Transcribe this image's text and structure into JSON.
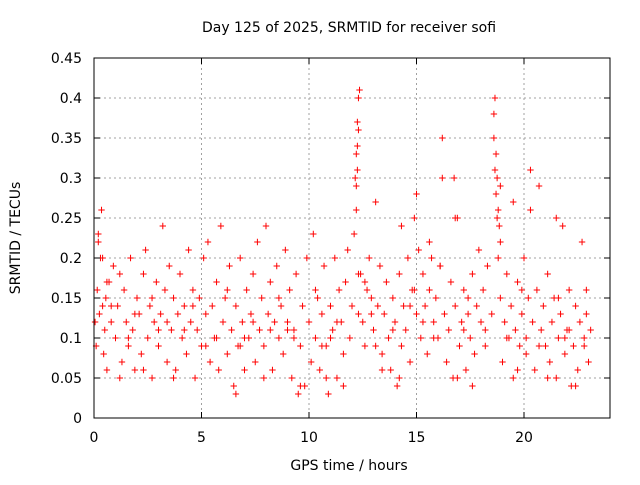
{
  "chart_data": {
    "type": "scatter",
    "title": "Day 125 of 2025, SRMTID for receiver sofi",
    "xlabel": "GPS time / hours",
    "ylabel": "SRMTID / TECUs",
    "xlim": [
      0,
      24
    ],
    "ylim": [
      0,
      0.45
    ],
    "x_ticks": [
      0,
      5,
      10,
      15,
      20
    ],
    "x_tick_labels": [
      "0",
      "5",
      "10",
      "15",
      "20"
    ],
    "y_ticks": [
      0,
      0.05,
      0.1,
      0.15,
      0.2,
      0.25,
      0.3,
      0.35,
      0.4,
      0.45
    ],
    "y_tick_labels": [
      "0",
      "0.05",
      "0.1",
      "0.15",
      "0.2",
      "0.25",
      "0.3",
      "0.35",
      "0.4",
      "0.45"
    ],
    "grid": true,
    "marker": "plus",
    "color": "#ff0000",
    "points": [
      [
        0.05,
        0.12
      ],
      [
        0.1,
        0.09
      ],
      [
        0.15,
        0.16
      ],
      [
        0.2,
        0.22
      ],
      [
        0.25,
        0.13
      ],
      [
        0.3,
        0.2
      ],
      [
        0.35,
        0.26
      ],
      [
        0.4,
        0.14
      ],
      [
        0.45,
        0.08
      ],
      [
        0.5,
        0.11
      ],
      [
        0.55,
        0.15
      ],
      [
        0.6,
        0.06
      ],
      [
        0.7,
        0.17
      ],
      [
        0.8,
        0.12
      ],
      [
        0.9,
        0.19
      ],
      [
        1.0,
        0.1
      ],
      [
        1.1,
        0.14
      ],
      [
        1.2,
        0.18
      ],
      [
        1.3,
        0.07
      ],
      [
        1.4,
        0.16
      ],
      [
        1.5,
        0.12
      ],
      [
        1.6,
        0.09
      ],
      [
        1.7,
        0.2
      ],
      [
        1.8,
        0.11
      ],
      [
        1.9,
        0.06
      ],
      [
        2.0,
        0.15
      ],
      [
        2.1,
        0.13
      ],
      [
        2.2,
        0.08
      ],
      [
        2.3,
        0.18
      ],
      [
        2.4,
        0.21
      ],
      [
        2.5,
        0.1
      ],
      [
        2.6,
        0.14
      ],
      [
        2.7,
        0.05
      ],
      [
        2.8,
        0.12
      ],
      [
        2.9,
        0.17
      ],
      [
        3.0,
        0.09
      ],
      [
        3.1,
        0.13
      ],
      [
        3.2,
        0.24
      ],
      [
        3.3,
        0.16
      ],
      [
        3.4,
        0.07
      ],
      [
        3.5,
        0.19
      ],
      [
        3.6,
        0.11
      ],
      [
        3.7,
        0.15
      ],
      [
        3.8,
        0.06
      ],
      [
        3.9,
        0.13
      ],
      [
        4.0,
        0.18
      ],
      [
        4.1,
        0.1
      ],
      [
        4.2,
        0.14
      ],
      [
        4.3,
        0.08
      ],
      [
        4.4,
        0.21
      ],
      [
        4.5,
        0.12
      ],
      [
        4.6,
        0.16
      ],
      [
        4.7,
        0.05
      ],
      [
        4.8,
        0.11
      ],
      [
        4.9,
        0.15
      ],
      [
        5.0,
        0.09
      ],
      [
        5.1,
        0.2
      ],
      [
        5.2,
        0.13
      ],
      [
        5.3,
        0.22
      ],
      [
        5.4,
        0.07
      ],
      [
        5.5,
        0.14
      ],
      [
        5.6,
        0.1
      ],
      [
        5.7,
        0.17
      ],
      [
        5.8,
        0.06
      ],
      [
        5.9,
        0.24
      ],
      [
        6.0,
        0.12
      ],
      [
        6.1,
        0.15
      ],
      [
        6.2,
        0.08
      ],
      [
        6.3,
        0.19
      ],
      [
        6.4,
        0.11
      ],
      [
        6.5,
        0.04
      ],
      [
        6.6,
        0.14
      ],
      [
        6.7,
        0.09
      ],
      [
        6.8,
        0.2
      ],
      [
        6.9,
        0.12
      ],
      [
        7.0,
        0.06
      ],
      [
        7.1,
        0.16
      ],
      [
        7.2,
        0.1
      ],
      [
        7.3,
        0.13
      ],
      [
        7.4,
        0.18
      ],
      [
        7.5,
        0.07
      ],
      [
        7.6,
        0.22
      ],
      [
        7.7,
        0.11
      ],
      [
        7.8,
        0.15
      ],
      [
        7.9,
        0.09
      ],
      [
        8.0,
        0.24
      ],
      [
        8.1,
        0.13
      ],
      [
        8.2,
        0.17
      ],
      [
        8.3,
        0.06
      ],
      [
        8.4,
        0.12
      ],
      [
        8.5,
        0.19
      ],
      [
        8.6,
        0.1
      ],
      [
        8.7,
        0.14
      ],
      [
        8.8,
        0.08
      ],
      [
        8.9,
        0.21
      ],
      [
        9.0,
        0.12
      ],
      [
        9.1,
        0.16
      ],
      [
        9.2,
        0.05
      ],
      [
        9.3,
        0.11
      ],
      [
        9.4,
        0.18
      ],
      [
        9.5,
        0.03
      ],
      [
        9.6,
        0.09
      ],
      [
        9.7,
        0.14
      ],
      [
        9.8,
        0.04
      ],
      [
        9.9,
        0.2
      ],
      [
        10.0,
        0.12
      ],
      [
        10.1,
        0.07
      ],
      [
        10.2,
        0.23
      ],
      [
        10.3,
        0.1
      ],
      [
        10.4,
        0.15
      ],
      [
        10.5,
        0.06
      ],
      [
        10.6,
        0.13
      ],
      [
        10.7,
        0.19
      ],
      [
        10.8,
        0.09
      ],
      [
        10.9,
        0.03
      ],
      [
        11.0,
        0.14
      ],
      [
        11.1,
        0.11
      ],
      [
        11.2,
        0.2
      ],
      [
        11.3,
        0.05
      ],
      [
        11.4,
        0.16
      ],
      [
        11.5,
        0.12
      ],
      [
        11.6,
        0.08
      ],
      [
        11.7,
        0.17
      ],
      [
        11.8,
        0.21
      ],
      [
        11.9,
        0.1
      ],
      [
        12.0,
        0.14
      ],
      [
        12.1,
        0.23
      ],
      [
        12.2,
        0.26
      ],
      [
        12.3,
        0.13
      ],
      [
        12.4,
        0.18
      ],
      [
        12.5,
        0.12
      ],
      [
        12.6,
        0.09
      ],
      [
        12.7,
        0.16
      ],
      [
        12.8,
        0.2
      ],
      [
        12.9,
        0.15
      ],
      [
        13.0,
        0.11
      ],
      [
        13.1,
        0.27
      ],
      [
        13.2,
        0.14
      ],
      [
        13.3,
        0.19
      ],
      [
        13.4,
        0.08
      ],
      [
        13.5,
        0.13
      ],
      [
        13.6,
        0.17
      ],
      [
        13.7,
        0.1
      ],
      [
        13.8,
        0.06
      ],
      [
        13.9,
        0.15
      ],
      [
        14.0,
        0.12
      ],
      [
        14.1,
        0.04
      ],
      [
        14.2,
        0.18
      ],
      [
        14.3,
        0.09
      ],
      [
        14.4,
        0.14
      ],
      [
        14.5,
        0.11
      ],
      [
        14.6,
        0.2
      ],
      [
        14.7,
        0.07
      ],
      [
        14.8,
        0.16
      ],
      [
        14.9,
        0.25
      ],
      [
        15.0,
        0.13
      ],
      [
        15.1,
        0.21
      ],
      [
        15.2,
        0.1
      ],
      [
        15.3,
        0.18
      ],
      [
        15.4,
        0.14
      ],
      [
        15.5,
        0.08
      ],
      [
        15.6,
        0.16
      ],
      [
        15.7,
        0.2
      ],
      [
        15.8,
        0.12
      ],
      [
        15.9,
        0.15
      ],
      [
        16.0,
        0.1
      ],
      [
        16.1,
        0.19
      ],
      [
        16.2,
        0.35
      ],
      [
        16.3,
        0.13
      ],
      [
        16.4,
        0.07
      ],
      [
        16.5,
        0.11
      ],
      [
        16.6,
        0.17
      ],
      [
        16.7,
        0.05
      ],
      [
        16.8,
        0.14
      ],
      [
        16.9,
        0.25
      ],
      [
        17.0,
        0.09
      ],
      [
        17.1,
        0.12
      ],
      [
        17.2,
        0.16
      ],
      [
        17.3,
        0.06
      ],
      [
        17.4,
        0.13
      ],
      [
        17.5,
        0.1
      ],
      [
        17.6,
        0.18
      ],
      [
        17.7,
        0.08
      ],
      [
        17.8,
        0.14
      ],
      [
        17.9,
        0.21
      ],
      [
        18.0,
        0.12
      ],
      [
        18.1,
        0.16
      ],
      [
        18.2,
        0.09
      ],
      [
        18.3,
        0.19
      ],
      [
        18.5,
        0.13
      ],
      [
        18.9,
        0.15
      ],
      [
        19.0,
        0.07
      ],
      [
        19.1,
        0.12
      ],
      [
        19.2,
        0.18
      ],
      [
        19.3,
        0.1
      ],
      [
        19.4,
        0.14
      ],
      [
        19.5,
        0.05
      ],
      [
        19.6,
        0.11
      ],
      [
        19.7,
        0.17
      ],
      [
        19.8,
        0.09
      ],
      [
        19.9,
        0.13
      ],
      [
        20.0,
        0.2
      ],
      [
        20.1,
        0.08
      ],
      [
        20.2,
        0.15
      ],
      [
        20.3,
        0.31
      ],
      [
        20.4,
        0.12
      ],
      [
        20.5,
        0.06
      ],
      [
        20.6,
        0.16
      ],
      [
        20.7,
        0.29
      ],
      [
        20.8,
        0.11
      ],
      [
        20.9,
        0.14
      ],
      [
        21.0,
        0.09
      ],
      [
        21.1,
        0.18
      ],
      [
        21.2,
        0.07
      ],
      [
        21.3,
        0.12
      ],
      [
        21.4,
        0.15
      ],
      [
        21.5,
        0.05
      ],
      [
        21.6,
        0.1
      ],
      [
        21.7,
        0.13
      ],
      [
        21.8,
        0.24
      ],
      [
        21.9,
        0.08
      ],
      [
        22.0,
        0.11
      ],
      [
        22.1,
        0.16
      ],
      [
        22.2,
        0.04
      ],
      [
        22.3,
        0.09
      ],
      [
        22.4,
        0.14
      ],
      [
        22.5,
        0.06
      ],
      [
        22.6,
        0.12
      ],
      [
        22.7,
        0.22
      ],
      [
        22.8,
        0.1
      ],
      [
        22.9,
        0.13
      ],
      [
        23.0,
        0.07
      ],
      [
        23.1,
        0.11
      ],
      [
        12.15,
        0.3
      ],
      [
        12.2,
        0.33
      ],
      [
        12.25,
        0.37
      ],
      [
        12.3,
        0.4
      ],
      [
        12.35,
        0.41
      ],
      [
        12.25,
        0.34
      ],
      [
        12.3,
        0.36
      ],
      [
        12.2,
        0.29
      ],
      [
        12.25,
        0.31
      ],
      [
        12.3,
        0.18
      ],
      [
        18.6,
        0.38
      ],
      [
        18.65,
        0.4
      ],
      [
        18.6,
        0.35
      ],
      [
        18.7,
        0.33
      ],
      [
        18.75,
        0.3
      ],
      [
        18.8,
        0.26
      ],
      [
        18.85,
        0.24
      ],
      [
        18.9,
        0.22
      ],
      [
        18.8,
        0.2
      ],
      [
        18.7,
        0.28
      ],
      [
        18.65,
        0.31
      ],
      [
        18.75,
        0.25
      ],
      [
        18.9,
        0.29
      ],
      [
        15.0,
        0.28
      ],
      [
        16.2,
        0.3
      ],
      [
        16.75,
        0.3
      ],
      [
        16.8,
        0.25
      ],
      [
        19.5,
        0.27
      ],
      [
        20.3,
        0.26
      ],
      [
        21.5,
        0.25
      ],
      [
        14.3,
        0.24
      ],
      [
        15.6,
        0.22
      ],
      [
        16.1,
        0.19
      ],
      [
        0.4,
        0.2
      ],
      [
        0.2,
        0.23
      ],
      [
        0.8,
        0.14
      ],
      [
        1.9,
        0.13
      ],
      [
        3.4,
        0.12
      ],
      [
        4.2,
        0.11
      ],
      [
        5.7,
        0.1
      ],
      [
        6.8,
        0.09
      ],
      [
        7.4,
        0.12
      ],
      [
        8.2,
        0.11
      ],
      [
        9.3,
        0.1
      ],
      [
        10.6,
        0.09
      ],
      [
        11.3,
        0.12
      ],
      [
        12.9,
        0.13
      ],
      [
        13.9,
        0.11
      ],
      [
        14.7,
        0.14
      ],
      [
        15.3,
        0.12
      ],
      [
        17.2,
        0.11
      ],
      [
        19.2,
        0.1
      ],
      [
        20.7,
        0.09
      ],
      [
        21.9,
        0.1
      ],
      [
        22.8,
        0.09
      ],
      [
        1.2,
        0.05
      ],
      [
        2.3,
        0.06
      ],
      [
        3.7,
        0.05
      ],
      [
        6.6,
        0.03
      ],
      [
        7.9,
        0.05
      ],
      [
        9.6,
        0.04
      ],
      [
        10.8,
        0.05
      ],
      [
        11.6,
        0.04
      ],
      [
        13.4,
        0.06
      ],
      [
        14.2,
        0.05
      ],
      [
        16.9,
        0.05
      ],
      [
        17.6,
        0.04
      ],
      [
        19.7,
        0.06
      ],
      [
        21.1,
        0.05
      ],
      [
        22.4,
        0.04
      ],
      [
        0.6,
        0.17
      ],
      [
        2.7,
        0.15
      ],
      [
        4.6,
        0.14
      ],
      [
        6.2,
        0.16
      ],
      [
        8.6,
        0.15
      ],
      [
        10.3,
        0.16
      ],
      [
        12.6,
        0.17
      ],
      [
        14.9,
        0.16
      ],
      [
        17.4,
        0.15
      ],
      [
        19.9,
        0.16
      ],
      [
        21.6,
        0.15
      ],
      [
        22.9,
        0.16
      ],
      [
        1.6,
        0.1
      ],
      [
        3.0,
        0.11
      ],
      [
        5.2,
        0.09
      ],
      [
        7.0,
        0.1
      ],
      [
        9.0,
        0.11
      ],
      [
        11.0,
        0.1
      ],
      [
        13.1,
        0.09
      ],
      [
        15.8,
        0.1
      ],
      [
        18.2,
        0.11
      ],
      [
        20.1,
        0.1
      ],
      [
        22.1,
        0.11
      ]
    ]
  }
}
